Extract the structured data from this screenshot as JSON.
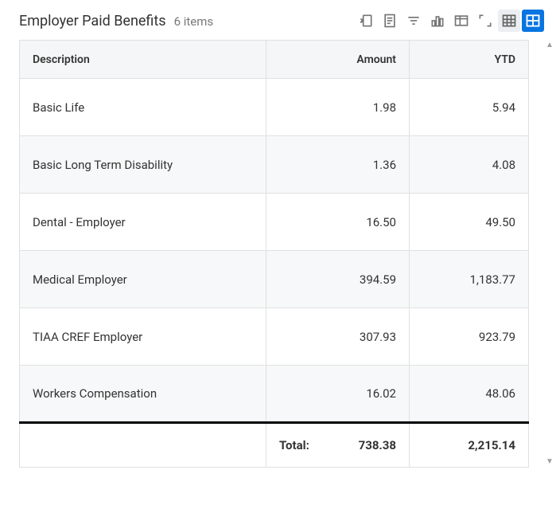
{
  "header": {
    "title": "Employer Paid Benefits",
    "item_count_label": "6 items"
  },
  "toolbar": {
    "export_excel": "export-excel",
    "worksheet": "worksheet",
    "filter": "filter",
    "chart": "chart",
    "column_prefs": "column-preferences",
    "fullscreen": "fullscreen",
    "table_view": "table-view",
    "grid_view": "grid-view"
  },
  "table": {
    "columns": [
      {
        "key": "description",
        "label": "Description",
        "align": "left"
      },
      {
        "key": "amount",
        "label": "Amount",
        "align": "right"
      },
      {
        "key": "ytd",
        "label": "YTD",
        "align": "right"
      }
    ],
    "rows": [
      {
        "description": "Basic Life",
        "amount": "1.98",
        "ytd": "5.94"
      },
      {
        "description": "Basic Long Term Disability",
        "amount": "1.36",
        "ytd": "4.08"
      },
      {
        "description": "Dental - Employer",
        "amount": "16.50",
        "ytd": "49.50"
      },
      {
        "description": "Medical Employer",
        "amount": "394.59",
        "ytd": "1,183.77"
      },
      {
        "description": "TIAA CREF Employer",
        "amount": "307.93",
        "ytd": "923.79"
      },
      {
        "description": "Workers Compensation",
        "amount": "16.02",
        "ytd": "48.06"
      }
    ],
    "total": {
      "label": "Total:",
      "amount": "738.38",
      "ytd": "2,215.14"
    }
  },
  "colors": {
    "accent": "#0875e1",
    "border": "#e0e0e0",
    "row_alt": "#f7f8f9",
    "header_bg": "#f5f6f7",
    "text": "#333333",
    "muted": "#777777"
  }
}
